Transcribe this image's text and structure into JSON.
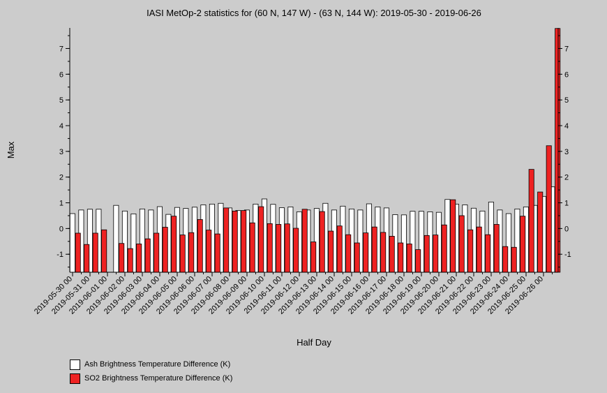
{
  "chart_data": {
    "type": "bar",
    "title": "IASI MetOp-2 statistics for (60 N, 147 W) - (63 N, 144 W): 2019-05-30 - 2019-06-26",
    "xlabel": "Half Day",
    "ylabel": "Max",
    "ylim": [
      -1.7,
      7.8
    ],
    "yticks": [
      -1,
      0,
      1,
      2,
      3,
      4,
      5,
      6,
      7
    ],
    "xtick_labels": [
      "2019-05-30 00",
      "2019-05-31 00",
      "2019-06-01 00",
      "2019-06-02 00",
      "2019-06-03 00",
      "2019-06-04 00",
      "2019-06-05 00",
      "2019-06-06 00",
      "2019-06-07 00",
      "2019-06-08 00",
      "2019-06-09 00",
      "2019-06-10 00",
      "2019-06-11 00",
      "2019-06-12 00",
      "2019-06-13 00",
      "2019-06-14 00",
      "2019-06-15 00",
      "2019-06-16 00",
      "2019-06-17 00",
      "2019-06-18 00",
      "2019-06-19 00",
      "2019-06-20 00",
      "2019-06-21 00",
      "2019-06-22 00",
      "2019-06-23 00",
      "2019-06-24 00",
      "2019-06-25 00",
      "2019-06-26 00"
    ],
    "series": [
      {
        "name": "Ash Brightness Temperature Difference (K)",
        "color": "#ffffff",
        "values": [
          0.58,
          0.72,
          0.75,
          0.75,
          null,
          0.9,
          0.68,
          0.57,
          0.76,
          0.72,
          0.85,
          0.55,
          0.82,
          0.78,
          0.83,
          0.92,
          0.95,
          0.98,
          0.8,
          0.7,
          0.72,
          0.95,
          1.15,
          0.94,
          0.81,
          0.84,
          0.65,
          0.72,
          0.78,
          0.98,
          0.72,
          0.87,
          0.76,
          0.72,
          0.96,
          0.84,
          0.8,
          0.54,
          0.53,
          0.67,
          0.67,
          0.65,
          0.63,
          1.13,
          0.95,
          0.92,
          0.79,
          0.68,
          1.03,
          0.72,
          0.58,
          0.76,
          0.84,
          0.9,
          1.25,
          1.62
        ]
      },
      {
        "name": "SO2 Brightness Temperature Difference (K)",
        "color": "#ee2222",
        "values": [
          -0.18,
          -0.62,
          -0.18,
          -0.05,
          null,
          -0.58,
          -0.78,
          -0.6,
          -0.4,
          -0.18,
          0.05,
          0.48,
          -0.25,
          -0.16,
          0.35,
          -0.06,
          -0.21,
          0.8,
          0.68,
          0.7,
          0.22,
          0.85,
          0.19,
          0.16,
          0.18,
          0.01,
          0.75,
          -0.52,
          0.66,
          -0.1,
          0.1,
          -0.24,
          -0.56,
          -0.17,
          0.06,
          -0.15,
          -0.3,
          -0.56,
          -0.6,
          -0.82,
          -0.27,
          -0.25,
          0.14,
          1.12,
          0.5,
          -0.05,
          0.06,
          -0.24,
          0.16,
          -0.7,
          -0.73,
          0.48,
          2.3,
          1.42,
          3.22,
          7.78
        ]
      }
    ],
    "legend_position": "bottom-left"
  }
}
